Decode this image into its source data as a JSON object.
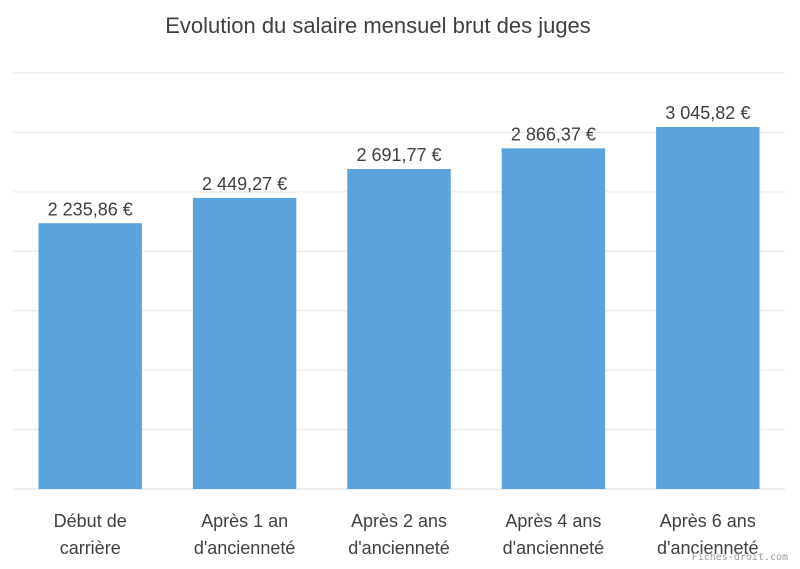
{
  "chart_data": {
    "type": "bar",
    "title": "Evolution du salaire mensuel brut des juges",
    "categories": [
      [
        "Début de",
        "carrière"
      ],
      [
        "Après 1 an",
        "d'ancienneté"
      ],
      [
        "Après 2 ans",
        "d'ancienneté"
      ],
      [
        "Après 4 ans",
        "d'ancienneté"
      ],
      [
        "Après 6 ans",
        "d'ancienneté"
      ]
    ],
    "values": [
      2235.86,
      2449.27,
      2691.77,
      2866.37,
      3045.82
    ],
    "data_labels": [
      "2 235,86 €",
      "2 449,27 €",
      "2 691,77 €",
      "2 866,37 €",
      "3 045,82 €"
    ],
    "xlabel": "",
    "ylabel": "",
    "ylim": [
      0,
      3500
    ],
    "grid": true,
    "legend": "none",
    "bar_color": "#5ba3dc",
    "grid_color": "#e6e6e6",
    "axis_color": "#d9d9d9",
    "text_color": "#404040"
  },
  "watermark": "Fiches-droit.com"
}
